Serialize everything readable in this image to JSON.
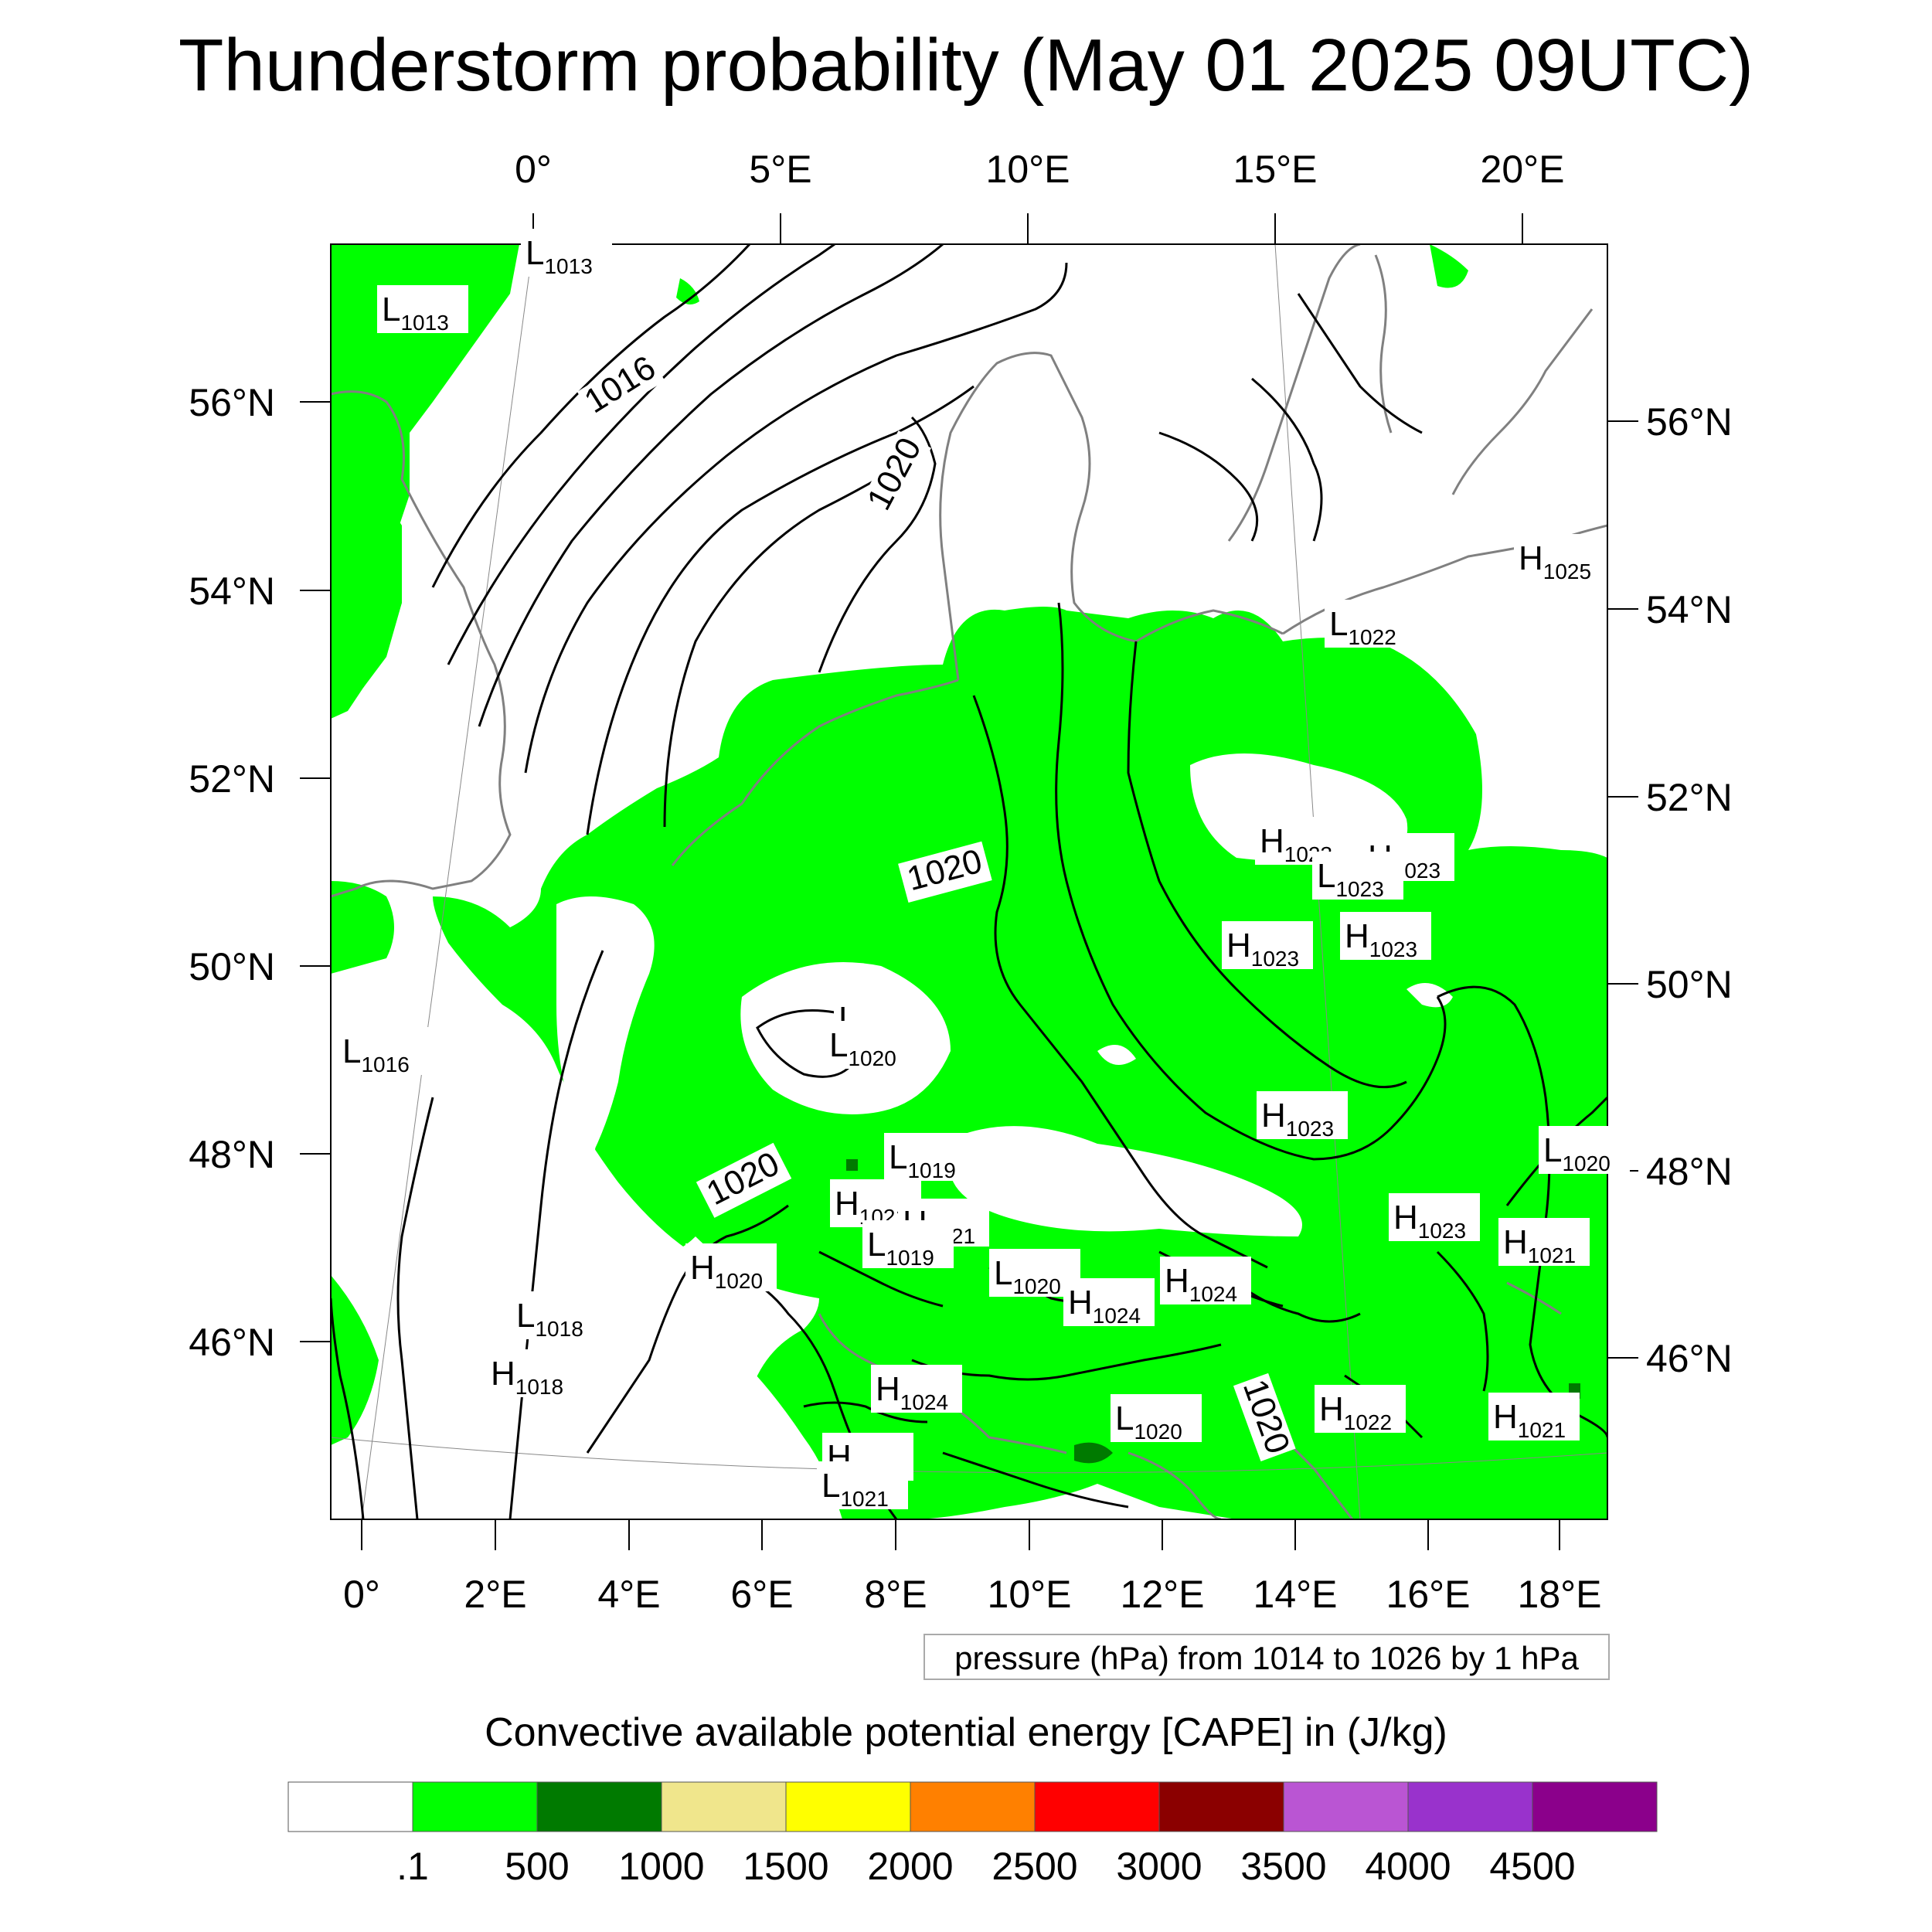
{
  "title": "Thunderstorm probability (May 01 2025 09UTC)",
  "top_lon_labels": [
    "0°",
    "5°E",
    "10°E",
    "15°E",
    "20°E"
  ],
  "bottom_lon_labels": [
    "0°",
    "2°E",
    "4°E",
    "6°E",
    "8°E",
    "10°E",
    "12°E",
    "14°E",
    "16°E",
    "18°E"
  ],
  "left_lat_labels": [
    "56°N",
    "54°N",
    "52°N",
    "50°N",
    "48°N",
    "46°N"
  ],
  "right_lat_labels": [
    "56°N",
    "54°N",
    "52°N",
    "50°N",
    "48°N",
    "46°N"
  ],
  "isobar_labels": [
    "1016",
    "1020",
    "1020",
    "1020",
    "1020"
  ],
  "pressure_centers": [
    {
      "type": "L",
      "value": "1013"
    },
    {
      "type": "L",
      "value": "1013"
    },
    {
      "type": "L",
      "value": "1016"
    },
    {
      "type": "L",
      "value": "1018"
    },
    {
      "type": "H",
      "value": "1018"
    },
    {
      "type": "L",
      "value": "1020"
    },
    {
      "type": "L",
      "value": "1020"
    },
    {
      "type": "L",
      "value": "1019"
    },
    {
      "type": "H",
      "value": "1021"
    },
    {
      "type": "H",
      "value": "1021"
    },
    {
      "type": "L",
      "value": "1019"
    },
    {
      "type": "H",
      "value": "1020"
    },
    {
      "type": "L",
      "value": "1020"
    },
    {
      "type": "H",
      "value": "1024"
    },
    {
      "type": "H",
      "value": "1024"
    },
    {
      "type": "H",
      "value": "1024"
    },
    {
      "type": "H",
      "value": "1024"
    },
    {
      "type": "L",
      "value": "1021"
    },
    {
      "type": "L",
      "value": "1020"
    },
    {
      "type": "H",
      "value": "1022"
    },
    {
      "type": "H",
      "value": "1021"
    },
    {
      "type": "H",
      "value": "1021"
    },
    {
      "type": "L",
      "value": "1020"
    },
    {
      "type": "H",
      "value": "1023"
    },
    {
      "type": "H",
      "value": "1023"
    },
    {
      "type": "H",
      "value": "1023"
    },
    {
      "type": "H",
      "value": "1023"
    },
    {
      "type": "H",
      "value": "1023"
    },
    {
      "type": "H",
      "value": "1023"
    },
    {
      "type": "L",
      "value": "1023"
    },
    {
      "type": "L",
      "value": "1022"
    },
    {
      "type": "H",
      "value": "1025"
    }
  ],
  "pressure_note": "pressure (hPa) from 1014 to 1026 by 1 hPa",
  "colorbar": {
    "title": "Convective available potential energy [CAPE] in (J/kg)",
    "colors": [
      "#ffffff",
      "#00ff00",
      "#007a00",
      "#f0e68c",
      "#ffff00",
      "#ff8000",
      "#ff0000",
      "#8b0000",
      "#ba55d3",
      "#9932cc",
      "#8b008b"
    ],
    "labels": [
      ".1",
      "500",
      "1000",
      "1500",
      "2000",
      "2500",
      "3000",
      "3500",
      "4000",
      "4500"
    ]
  }
}
